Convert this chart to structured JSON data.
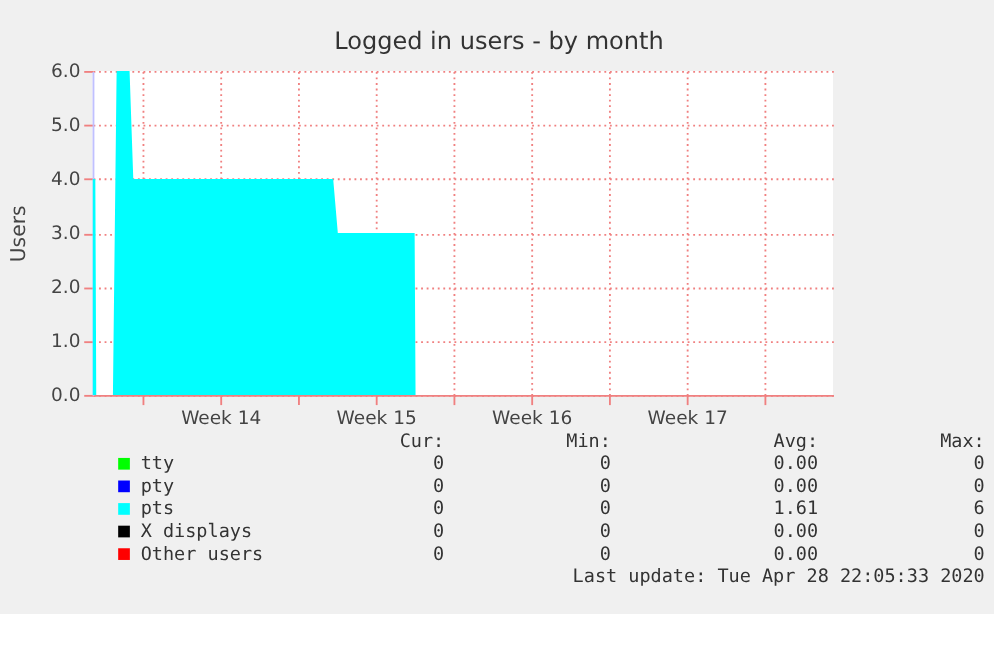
{
  "chart_data": {
    "type": "area",
    "title": "Logged in users - by month",
    "ylabel": "Users",
    "xlim": [
      "2020-03-26T18:00",
      "2020-04-29T02:00"
    ],
    "xticks": [
      {
        "value": "2020-03-29T00:00",
        "label": null
      },
      {
        "value": "2020-04-01T12:00",
        "label": "Week 14"
      },
      {
        "value": "2020-04-05T00:00",
        "label": null
      },
      {
        "value": "2020-04-08T12:00",
        "label": "Week 15"
      },
      {
        "value": "2020-04-12T00:00",
        "label": null
      },
      {
        "value": "2020-04-15T12:00",
        "label": "Week 16"
      },
      {
        "value": "2020-04-19T00:00",
        "label": null
      },
      {
        "value": "2020-04-22T12:00",
        "label": "Week 17"
      },
      {
        "value": "2020-04-26T00:00",
        "label": null
      }
    ],
    "ylim": [
      0,
      6
    ],
    "yticks": [
      {
        "value": 0,
        "label": "0.0"
      },
      {
        "value": 1,
        "label": "1.0"
      },
      {
        "value": 2,
        "label": "2.0"
      },
      {
        "value": 3,
        "label": "3.0"
      },
      {
        "value": 4,
        "label": "4.0"
      },
      {
        "value": 5,
        "label": "5.0"
      },
      {
        "value": 6,
        "label": "6.0"
      }
    ],
    "grid": true,
    "legend": "bottom",
    "series": [
      {
        "name": "tty",
        "color": "#00ff00"
      },
      {
        "name": "pty",
        "color": "#0000ff"
      },
      {
        "name": "pts",
        "color": "#00ffff",
        "x": [
          "2020-03-26T18:00",
          "2020-03-26T21:00",
          "2020-03-26T22:00",
          "2020-03-27T16:00",
          "2020-03-27T20:00",
          "2020-03-28T10:00",
          "2020-03-28T14:00",
          "2020-04-06T14:00",
          "2020-04-06T19:00",
          "2020-04-10T06:00",
          "2020-04-10T07:00"
        ],
        "values": [
          4,
          4,
          0,
          0,
          6,
          6,
          4,
          4,
          3,
          3,
          0
        ]
      },
      {
        "name": "X displays",
        "color": "#000000"
      },
      {
        "name": "Other users",
        "color": "#ff0000"
      }
    ],
    "annotations": [
      "Cur:",
      "Min:",
      "Avg:",
      "Max:",
      "0",
      "0",
      "0.00",
      "0",
      "0",
      "0",
      "0.00",
      "0",
      "0",
      "0",
      "1.61",
      "6",
      "0",
      "0",
      "0.00",
      "0",
      "0",
      "0",
      "0.00",
      "0",
      "Last update: Tue Apr 28 22:05:33 2020"
    ]
  }
}
